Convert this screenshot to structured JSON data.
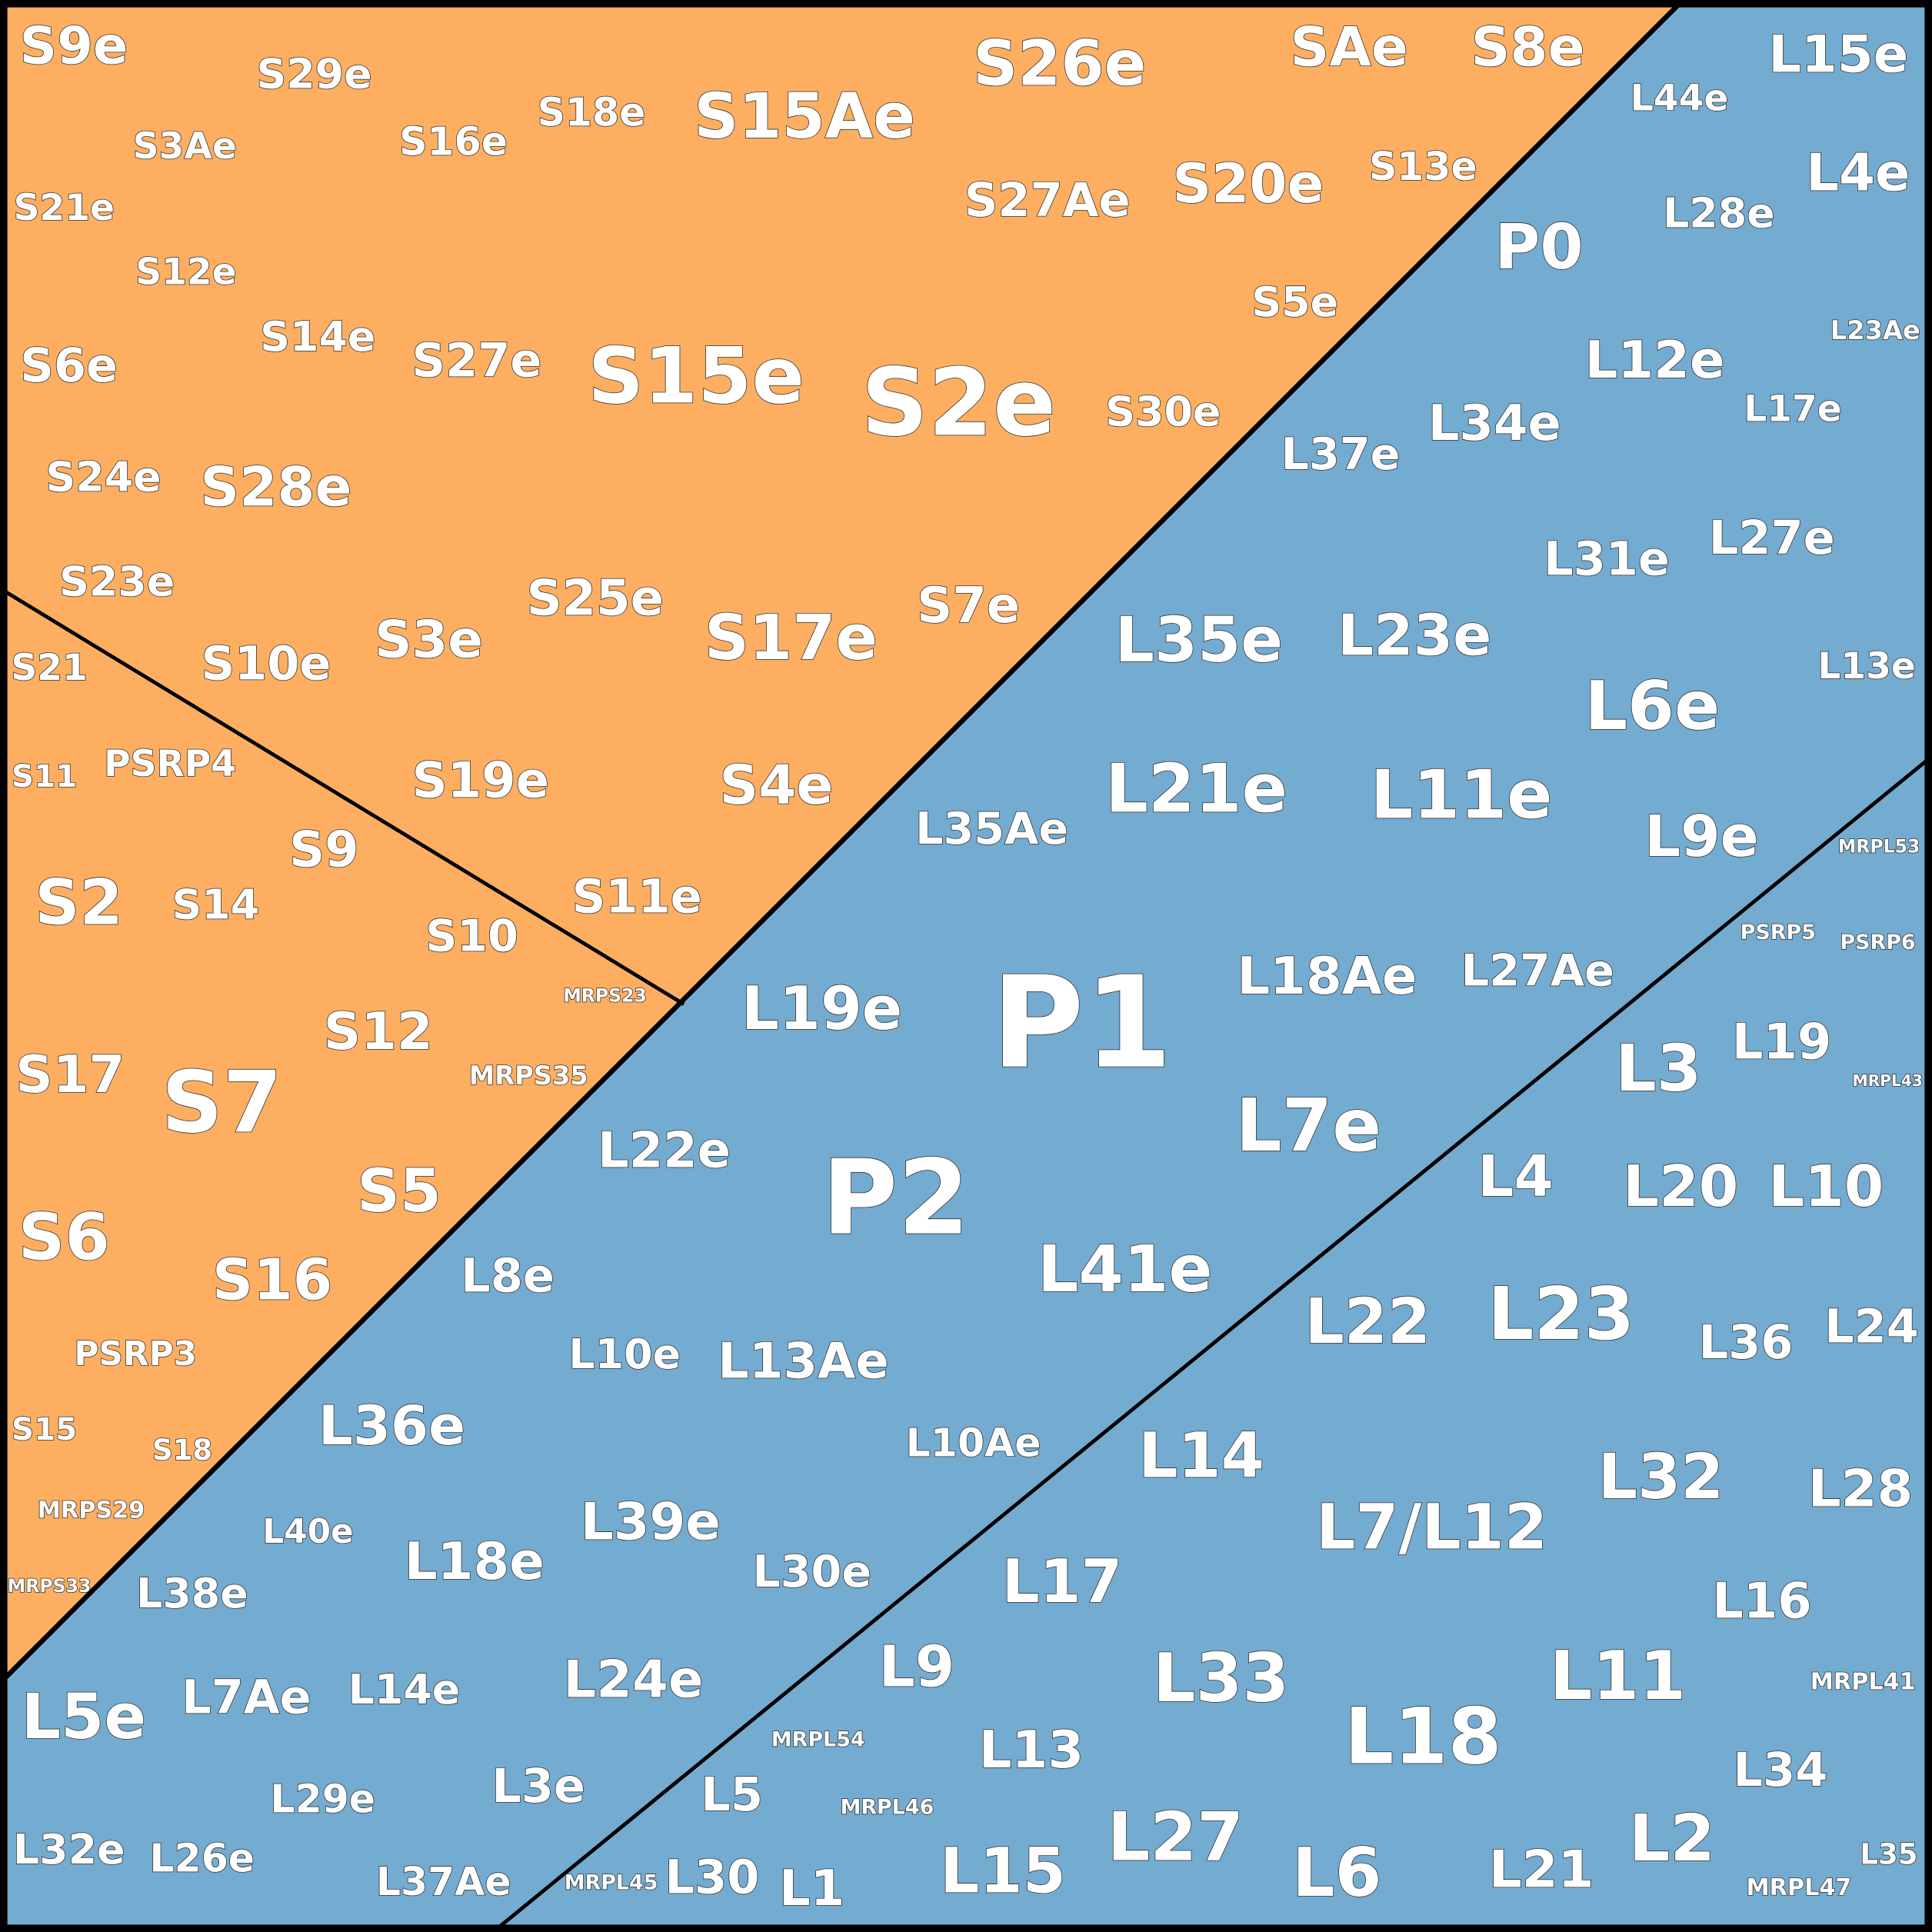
{
  "groups": [
    {
      "cells": [
        "S9e",
        "S29e",
        "S16e",
        "S18e",
        "S15Ae",
        "S26e",
        "SAe",
        "S8e",
        "S3Ae",
        "S21e",
        "S12e",
        "S14e",
        "S27e",
        "S15e",
        "S2e",
        "S27Ae",
        "S20e",
        "S13e",
        "S5e",
        "S30e",
        "S6e",
        "S24e",
        "S28e",
        "S23e",
        "S10e",
        "S3e",
        "S25e",
        "S17e",
        "S7e",
        "S19e",
        "S4e",
        "S11e"
      ]
    },
    {
      "cells": [
        "S21",
        "S11",
        "PSRP4",
        "S9",
        "S2",
        "S14",
        "S10",
        "MRPS23",
        "S17",
        "S7",
        "S12",
        "MRPS35",
        "S6",
        "S5",
        "S16",
        "PSRP3",
        "S15",
        "S18",
        "MRPS29",
        "MRPS33"
      ]
    },
    {
      "cells": [
        "L15e",
        "L44e",
        "L4e",
        "L28e",
        "P0",
        "L23Ae",
        "L12e",
        "L17e",
        "L34e",
        "L37e",
        "L27e",
        "L31e",
        "L35e",
        "L23e",
        "L6e",
        "L13e",
        "L21e",
        "L11e",
        "L9e",
        "L35Ae",
        "L19e",
        "P1",
        "L18Ae",
        "L27Ae",
        "L7e",
        "L22e",
        "P2",
        "L41e",
        "L8e",
        "L10e",
        "L13Ae",
        "L10Ae",
        "L36e",
        "L40e",
        "L39e",
        "L18e",
        "L30e",
        "L38e",
        "L5e",
        "L7Ae",
        "L14e",
        "L24e",
        "L3e",
        "L29e",
        "L32e",
        "L26e",
        "L37Ae"
      ]
    },
    {
      "cells": [
        "MRPL53",
        "PSRP5",
        "PSRP6",
        "L3",
        "L19",
        "MRPL43",
        "L4",
        "L20",
        "L10",
        "L22",
        "L23",
        "L36",
        "L24",
        "L14",
        "L32",
        "L28",
        "L7/L12",
        "L17",
        "L16",
        "L9",
        "L33",
        "L11",
        "MRPL41",
        "MRPL54",
        "L13",
        "L18",
        "L34",
        "L5",
        "MRPL46",
        "L27",
        "L2",
        "L35",
        "MRPL45",
        "L30",
        "L1",
        "L15",
        "L6",
        "L21",
        "MRPL47"
      ]
    }
  ]
}
